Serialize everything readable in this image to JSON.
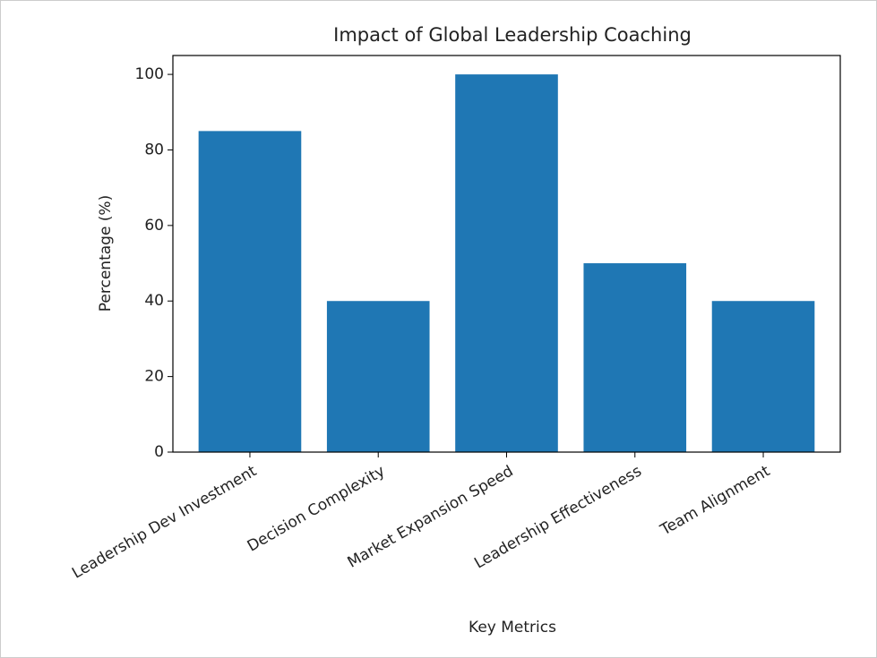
{
  "chart_data": {
    "type": "bar",
    "title": "Impact of Global Leadership Coaching",
    "x_label": "Key Metrics",
    "y_label": "Percentage (%)",
    "categories": [
      "Leadership Dev Investment",
      "Decision Complexity",
      "Market Expansion Speed",
      "Leadership Effectiveness",
      "Team Alignment"
    ],
    "values": [
      85,
      40,
      100,
      50,
      40
    ],
    "color": "#1f77b4",
    "ylim": [
      0,
      105
    ],
    "yticks": [
      0,
      20,
      40,
      60,
      80,
      100
    ],
    "grid": false
  }
}
